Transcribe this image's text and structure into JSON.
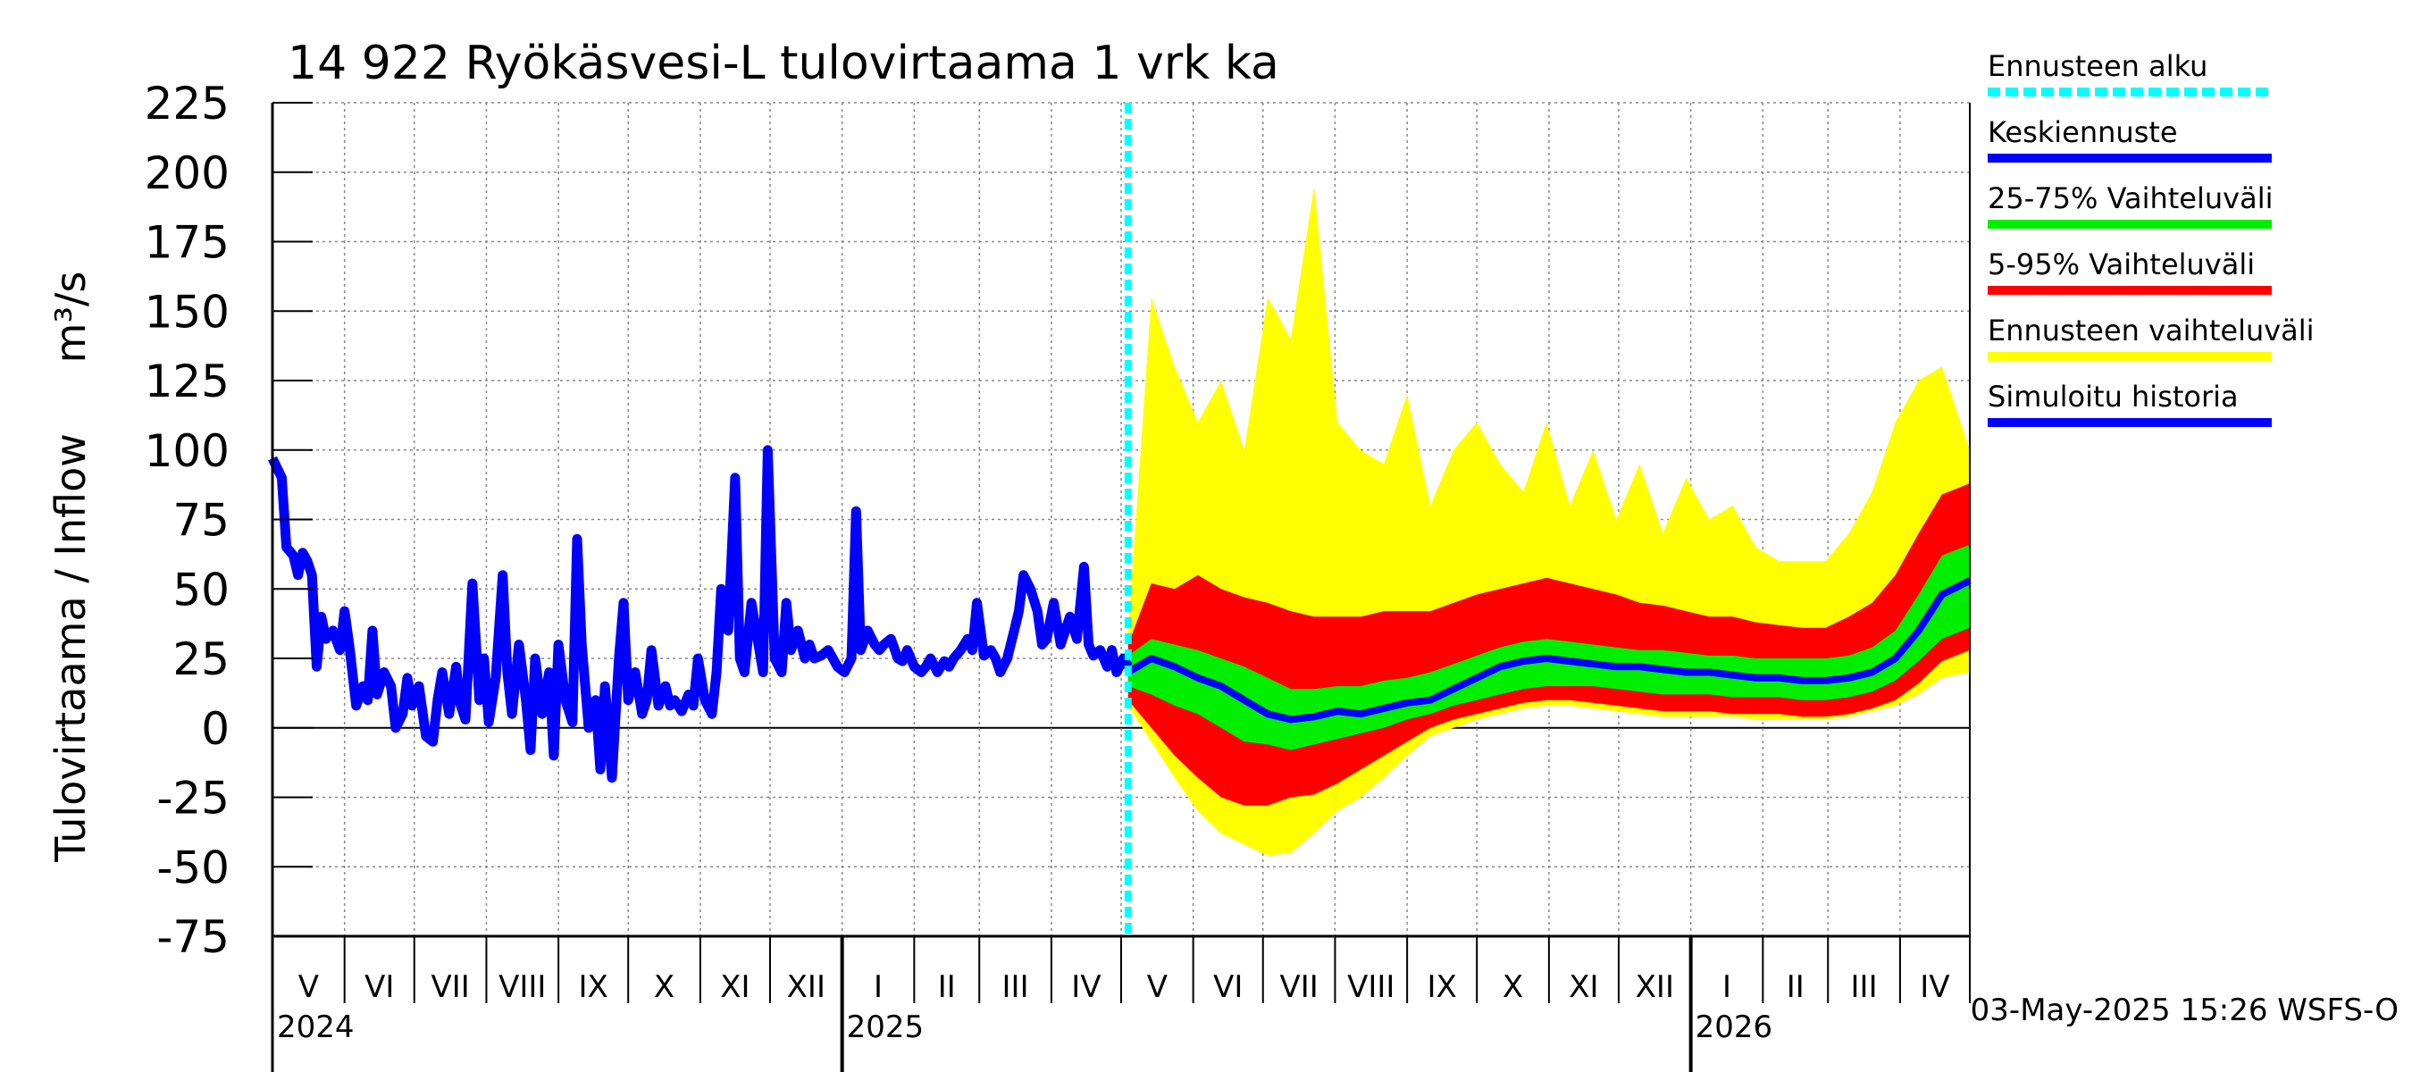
{
  "chart_data": {
    "type": "area",
    "title": "14 922 Ryökäsvesi-L tulovirtaama 1 vrk ka",
    "ylabel": "Tulovirtaama / Inflow",
    "yunit": "m³/s",
    "ylim": [
      -75,
      225
    ],
    "yticks": [
      "225",
      "200",
      "175",
      "150",
      "125",
      "100",
      "75",
      "50",
      "25",
      "0",
      "-25",
      "-50",
      "-75"
    ],
    "ytick_values": [
      225,
      200,
      175,
      150,
      125,
      100,
      75,
      50,
      25,
      0,
      -25,
      -50,
      -75
    ],
    "grid": true,
    "legend_position": "right",
    "legend": [
      {
        "key": "start",
        "label": "Ennusteen alku",
        "color": "#00ffff",
        "dashed": true
      },
      {
        "key": "mean",
        "label": "Keskiennuste",
        "color": "#0000ff"
      },
      {
        "key": "p25_75",
        "label": "25-75% Vaihteluväli",
        "color": "#00ee00"
      },
      {
        "key": "p5_95",
        "label": "5-95% Vaihteluväli",
        "color": "#ff0000"
      },
      {
        "key": "range",
        "label": "Ennusteen vaihteluväli",
        "color": "#ffff00"
      },
      {
        "key": "hist",
        "label": "Simuloitu historia",
        "color": "#0000ff"
      }
    ],
    "x_range_days": [
      0,
      730
    ],
    "forecast_start_day": 368,
    "months": [
      {
        "label": "V",
        "day": 0
      },
      {
        "label": "VI",
        "day": 31
      },
      {
        "label": "VII",
        "day": 61
      },
      {
        "label": "VIII",
        "day": 92
      },
      {
        "label": "IX",
        "day": 123
      },
      {
        "label": "X",
        "day": 153
      },
      {
        "label": "XI",
        "day": 184
      },
      {
        "label": "XII",
        "day": 214
      },
      {
        "label": "I",
        "day": 245
      },
      {
        "label": "II",
        "day": 276
      },
      {
        "label": "III",
        "day": 304
      },
      {
        "label": "IV",
        "day": 335
      },
      {
        "label": "V",
        "day": 365
      },
      {
        "label": "VI",
        "day": 396
      },
      {
        "label": "VII",
        "day": 426
      },
      {
        "label": "VIII",
        "day": 457
      },
      {
        "label": "IX",
        "day": 488
      },
      {
        "label": "X",
        "day": 518
      },
      {
        "label": "XI",
        "day": 549
      },
      {
        "label": "XII",
        "day": 579
      },
      {
        "label": "I",
        "day": 610
      },
      {
        "label": "II",
        "day": 641
      },
      {
        "label": "III",
        "day": 669
      },
      {
        "label": "IV",
        "day": 700
      }
    ],
    "years": [
      {
        "label": "2024",
        "day": 0
      },
      {
        "label": "2025",
        "day": 245
      },
      {
        "label": "2026",
        "day": 610
      }
    ],
    "history": {
      "x": [
        0,
        4,
        6,
        9,
        11,
        13,
        15,
        17,
        19,
        21,
        23,
        26,
        29,
        31,
        33,
        36,
        39,
        41,
        43,
        45,
        48,
        51,
        53,
        56,
        58,
        60,
        63,
        66,
        69,
        71,
        73,
        76,
        79,
        81,
        83,
        86,
        89,
        91,
        93,
        96,
        99,
        101,
        103,
        106,
        109,
        111,
        113,
        116,
        119,
        121,
        123,
        126,
        129,
        131,
        133,
        136,
        139,
        141,
        143,
        146,
        149,
        151,
        153,
        156,
        159,
        161,
        163,
        166,
        169,
        171,
        173,
        176,
        179,
        181,
        183,
        186,
        189,
        191,
        193,
        196,
        199,
        201,
        203,
        206,
        209,
        211,
        213,
        216,
        219,
        221,
        223,
        226,
        229,
        231,
        233,
        236,
        239,
        241,
        243,
        246,
        249,
        251,
        253,
        256,
        259,
        261,
        263,
        266,
        269,
        271,
        273,
        276,
        279,
        281,
        283,
        286,
        289,
        291,
        293,
        296,
        299,
        301,
        303,
        306,
        309,
        311,
        313,
        316,
        319,
        321,
        323,
        326,
        329,
        331,
        333,
        336,
        339,
        341,
        343,
        346,
        349,
        351,
        353,
        356,
        359,
        361,
        363,
        366,
        368
      ],
      "y": [
        97,
        90,
        65,
        62,
        55,
        63,
        60,
        55,
        22,
        40,
        32,
        35,
        28,
        42,
        30,
        8,
        15,
        10,
        35,
        12,
        20,
        15,
        0,
        5,
        18,
        8,
        15,
        -3,
        -5,
        10,
        20,
        5,
        22,
        8,
        3,
        52,
        10,
        25,
        2,
        18,
        55,
        20,
        5,
        30,
        10,
        -8,
        25,
        5,
        20,
        -10,
        30,
        10,
        2,
        68,
        30,
        0,
        10,
        -15,
        15,
        -18,
        25,
        45,
        10,
        20,
        5,
        10,
        28,
        8,
        15,
        8,
        10,
        6,
        12,
        8,
        25,
        10,
        5,
        20,
        50,
        35,
        90,
        25,
        20,
        45,
        30,
        20,
        100,
        25,
        20,
        45,
        28,
        35,
        25,
        30,
        25,
        26,
        28,
        25,
        22,
        20,
        25,
        78,
        28,
        35,
        30,
        28,
        30,
        32,
        25,
        24,
        28,
        22,
        20,
        22,
        25,
        20,
        24,
        22,
        25,
        28,
        32,
        28,
        45,
        26,
        28,
        25,
        20,
        25,
        35,
        42,
        55,
        50,
        42,
        30,
        32,
        45,
        30,
        35,
        40,
        32,
        58,
        30,
        26,
        28,
        22,
        28,
        20,
        25,
        22
      ]
    },
    "forecast": {
      "x": [
        368,
        378,
        388,
        398,
        408,
        418,
        428,
        438,
        448,
        458,
        468,
        478,
        488,
        498,
        508,
        518,
        528,
        538,
        548,
        558,
        568,
        578,
        588,
        598,
        608,
        618,
        628,
        638,
        648,
        658,
        668,
        678,
        688,
        698,
        708,
        718,
        730
      ],
      "median": [
        20,
        25,
        22,
        18,
        15,
        10,
        5,
        3,
        4,
        6,
        5,
        7,
        9,
        10,
        14,
        18,
        22,
        24,
        25,
        24,
        23,
        22,
        22,
        21,
        20,
        20,
        19,
        18,
        18,
        17,
        17,
        18,
        20,
        25,
        35,
        48,
        53
      ],
      "p25": [
        15,
        12,
        8,
        5,
        0,
        -5,
        -6,
        -8,
        -6,
        -4,
        -2,
        0,
        3,
        5,
        8,
        10,
        12,
        14,
        15,
        15,
        15,
        14,
        13,
        12,
        12,
        12,
        11,
        11,
        11,
        10,
        10,
        11,
        13,
        17,
        24,
        32,
        36
      ],
      "p75": [
        26,
        32,
        30,
        28,
        25,
        22,
        18,
        14,
        14,
        15,
        15,
        17,
        18,
        20,
        23,
        26,
        29,
        31,
        32,
        31,
        30,
        29,
        28,
        28,
        27,
        26,
        26,
        25,
        25,
        25,
        25,
        26,
        29,
        35,
        48,
        62,
        66
      ],
      "p5": [
        10,
        0,
        -10,
        -18,
        -25,
        -28,
        -28,
        -25,
        -24,
        -20,
        -15,
        -10,
        -5,
        0,
        3,
        5,
        7,
        9,
        10,
        10,
        9,
        8,
        7,
        6,
        6,
        6,
        5,
        5,
        5,
        4,
        4,
        5,
        7,
        10,
        16,
        24,
        28
      ],
      "p95": [
        30,
        52,
        50,
        55,
        50,
        47,
        45,
        42,
        40,
        40,
        40,
        42,
        42,
        42,
        45,
        48,
        50,
        52,
        54,
        52,
        50,
        48,
        45,
        44,
        42,
        40,
        40,
        38,
        37,
        36,
        36,
        40,
        45,
        55,
        70,
        84,
        88
      ],
      "min": [
        8,
        -5,
        -18,
        -30,
        -38,
        -42,
        -46,
        -45,
        -38,
        -30,
        -25,
        -18,
        -10,
        -3,
        0,
        3,
        5,
        7,
        8,
        8,
        7,
        6,
        5,
        4,
        4,
        4,
        4,
        3,
        3,
        3,
        3,
        4,
        6,
        8,
        12,
        18,
        20
      ],
      "max": [
        35,
        155,
        130,
        110,
        125,
        100,
        155,
        140,
        195,
        110,
        100,
        95,
        120,
        80,
        100,
        110,
        95,
        85,
        110,
        80,
        100,
        75,
        95,
        70,
        90,
        75,
        80,
        65,
        60,
        60,
        60,
        70,
        85,
        110,
        125,
        130,
        100
      ]
    }
  },
  "footer": {
    "timestamp": "03-May-2025 15:26 WSFS-O"
  }
}
